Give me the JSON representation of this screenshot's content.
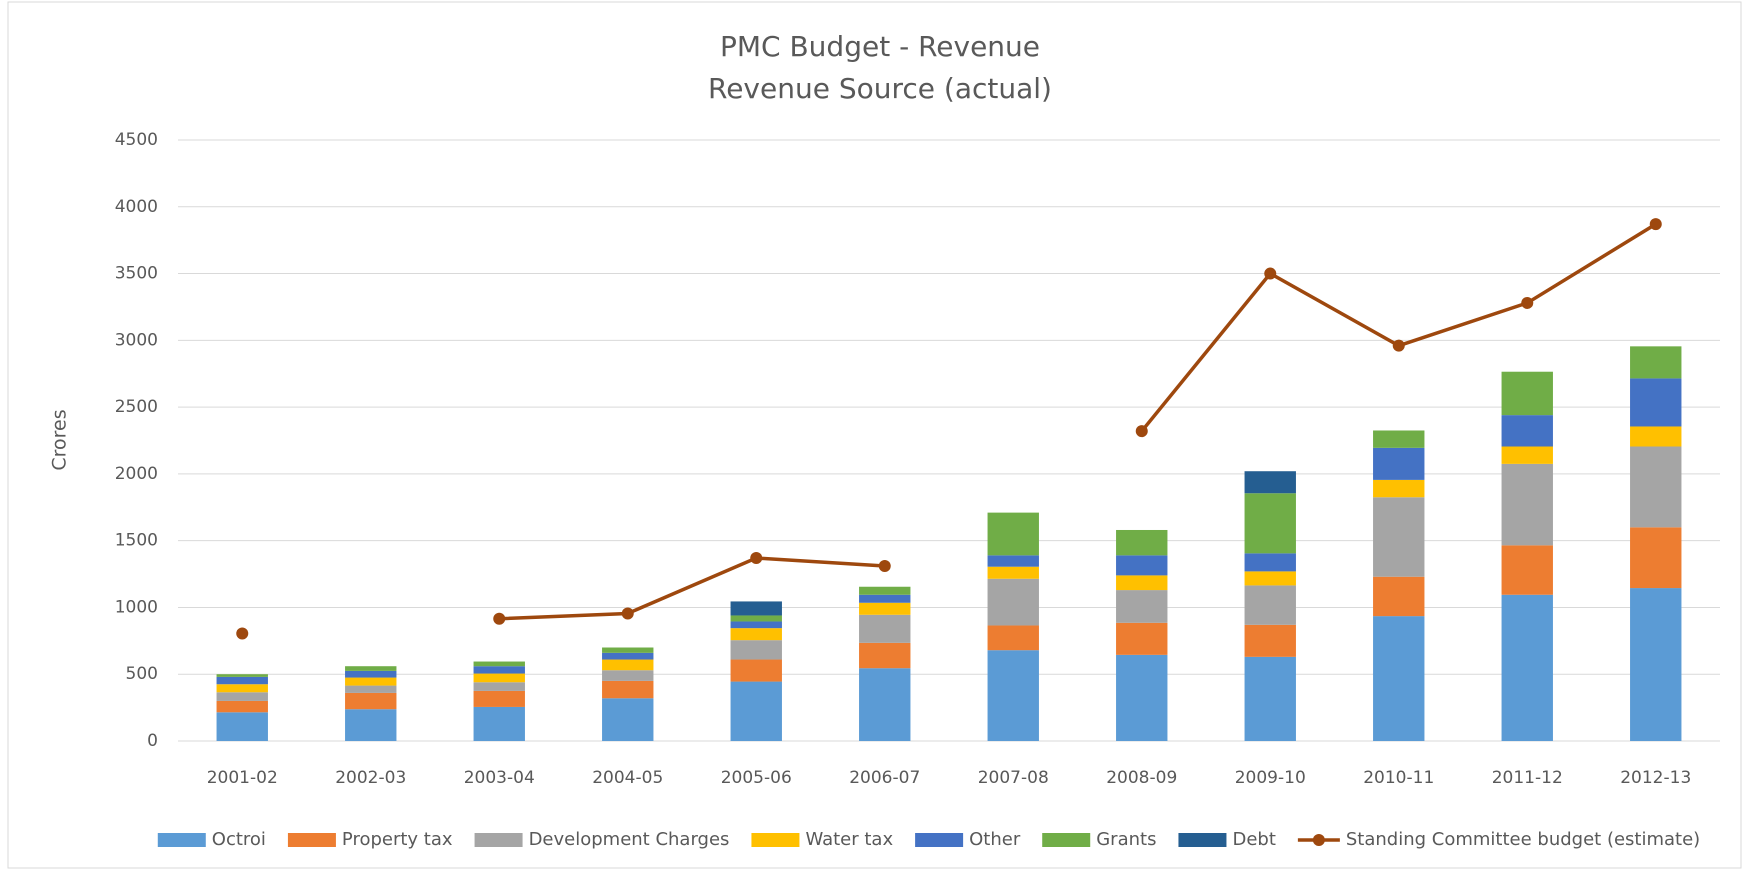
{
  "chart_data": {
    "type": "bar",
    "title": "PMC Budget - Revenue",
    "subtitle": "Revenue Source (actual)",
    "y_label": "Crores",
    "stacked": true,
    "grid": true,
    "legend": "bottom",
    "categories": [
      "2001-02",
      "2002-03",
      "2003-04",
      "2004-05",
      "2005-06",
      "2006-07",
      "2007-08",
      "2008-09",
      "2009-10",
      "2010-11",
      "2011-12",
      "2012-13"
    ],
    "ylim": [
      0,
      4500
    ],
    "yticks": [
      0,
      500,
      1000,
      1500,
      2000,
      2500,
      3000,
      3500,
      4000,
      4500
    ],
    "series": [
      {
        "name": "Octroi",
        "color": "#5b9bd5",
        "values": [
          215,
          238,
          255,
          320,
          445,
          545,
          680,
          645,
          630,
          935,
          1095,
          1145
        ]
      },
      {
        "name": "Property tax",
        "color": "#ed7d31",
        "values": [
          85,
          122,
          120,
          130,
          165,
          190,
          185,
          240,
          240,
          295,
          370,
          455
        ]
      },
      {
        "name": "Development Charges",
        "color": "#a5a5a5",
        "values": [
          65,
          55,
          65,
          80,
          145,
          210,
          350,
          245,
          295,
          595,
          610,
          605
        ]
      },
      {
        "name": "Water tax",
        "color": "#ffc000",
        "values": [
          60,
          60,
          65,
          80,
          90,
          90,
          90,
          110,
          105,
          130,
          130,
          150
        ]
      },
      {
        "name": "Other",
        "color": "#4472c4",
        "values": [
          55,
          50,
          55,
          50,
          50,
          60,
          85,
          150,
          135,
          240,
          235,
          360
        ]
      },
      {
        "name": "Grants",
        "color": "#70ad47",
        "values": [
          20,
          35,
          35,
          40,
          45,
          60,
          320,
          190,
          450,
          130,
          325,
          240
        ]
      },
      {
        "name": "Debt",
        "color": "#255e91",
        "values": [
          0,
          0,
          0,
          0,
          105,
          0,
          0,
          0,
          165,
          0,
          0,
          0
        ]
      },
      {
        "name": "Standing Committee budget (estimate)",
        "color": "#9e480e",
        "type": "line",
        "values": [
          805,
          null,
          915,
          955,
          1370,
          1310,
          null,
          2320,
          3500,
          2960,
          3280,
          3870
        ]
      }
    ]
  }
}
